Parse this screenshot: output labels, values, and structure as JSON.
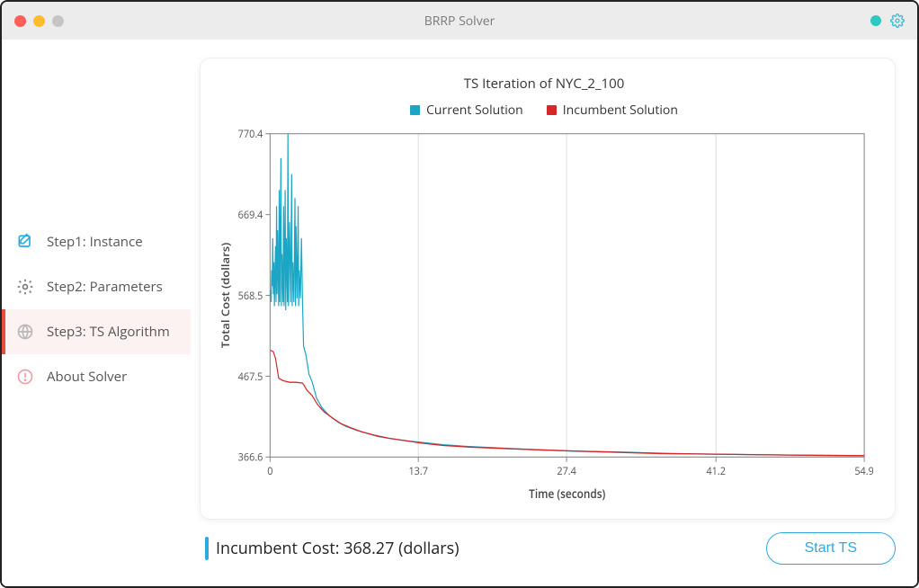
{
  "window": {
    "title": "BRRP Solver"
  },
  "sidebar": {
    "items": [
      {
        "label": "Step1: Instance",
        "icon": "edit",
        "icon_color": "#29abe2",
        "active": false
      },
      {
        "label": "Step2: Parameters",
        "icon": "gear",
        "icon_color": "#7d7d7d",
        "active": false
      },
      {
        "label": "Step3: TS Algorithm",
        "icon": "globe",
        "icon_color": "#b8b8b8",
        "active": true
      },
      {
        "label": "About Solver",
        "icon": "alert",
        "icon_color": "#f29da0",
        "active": false
      }
    ]
  },
  "chart": {
    "title": "TS Iteration of NYC_2_100",
    "legend": [
      {
        "label": "Current Solution",
        "color": "#1aa6c4"
      },
      {
        "label": "Incumbent Solution",
        "color": "#d62728"
      }
    ],
    "xlabel": "Time (seconds)",
    "ylabel": "Total Cost (dollars)",
    "xlim": [
      0.0,
      54.9
    ],
    "ylim": [
      366.6,
      770.4
    ],
    "xticks": [
      0.0,
      13.7,
      27.4,
      41.2,
      54.9
    ],
    "yticks": [
      366.6,
      467.5,
      568.5,
      669.4,
      770.4
    ],
    "grid_color": "#dddddd",
    "axis_color": "#888888",
    "background_color": "#ffffff",
    "line_width": 1.2,
    "series": {
      "current": {
        "color": "#1aa6c4",
        "points": [
          [
            0.05,
            575
          ],
          [
            0.1,
            560
          ],
          [
            0.15,
            600
          ],
          [
            0.2,
            580
          ],
          [
            0.25,
            640
          ],
          [
            0.3,
            570
          ],
          [
            0.35,
            610
          ],
          [
            0.4,
            555
          ],
          [
            0.5,
            630
          ],
          [
            0.55,
            560
          ],
          [
            0.6,
            680
          ],
          [
            0.65,
            570
          ],
          [
            0.7,
            650
          ],
          [
            0.8,
            555
          ],
          [
            0.85,
            700
          ],
          [
            0.9,
            560
          ],
          [
            1.0,
            740
          ],
          [
            1.05,
            555
          ],
          [
            1.1,
            620
          ],
          [
            1.2,
            560
          ],
          [
            1.25,
            680
          ],
          [
            1.3,
            555
          ],
          [
            1.4,
            700
          ],
          [
            1.45,
            550
          ],
          [
            1.5,
            640
          ],
          [
            1.6,
            560
          ],
          [
            1.65,
            770
          ],
          [
            1.7,
            555
          ],
          [
            1.8,
            660
          ],
          [
            1.9,
            560
          ],
          [
            2.0,
            720
          ],
          [
            2.05,
            555
          ],
          [
            2.1,
            610
          ],
          [
            2.2,
            560
          ],
          [
            2.3,
            690
          ],
          [
            2.35,
            555
          ],
          [
            2.4,
            655
          ],
          [
            2.5,
            565
          ],
          [
            2.6,
            680
          ],
          [
            2.65,
            555
          ],
          [
            2.7,
            600
          ],
          [
            2.8,
            565
          ],
          [
            2.9,
            640
          ],
          [
            3.0,
            558
          ],
          [
            3.1,
            505
          ],
          [
            3.3,
            495
          ],
          [
            3.6,
            470
          ],
          [
            3.9,
            460
          ],
          [
            4.3,
            440
          ],
          [
            4.8,
            428
          ],
          [
            5.5,
            418
          ],
          [
            6.3,
            410
          ],
          [
            7.0,
            405
          ],
          [
            8.0,
            400
          ],
          [
            9.0,
            396
          ],
          [
            10.0,
            392
          ],
          [
            11.0,
            390
          ],
          [
            12.5,
            387
          ],
          [
            14.0,
            385
          ],
          [
            16.0,
            382
          ],
          [
            18.0,
            380
          ],
          [
            21.0,
            378
          ],
          [
            24.0,
            376
          ],
          [
            28.0,
            374
          ],
          [
            32.0,
            373
          ],
          [
            37.0,
            371
          ],
          [
            42.0,
            370
          ],
          [
            48.0,
            369
          ],
          [
            54.9,
            368.3
          ]
        ]
      },
      "incumbent": {
        "color": "#d62728",
        "points": [
          [
            0.05,
            500
          ],
          [
            0.3,
            498
          ],
          [
            0.5,
            490
          ],
          [
            0.8,
            465
          ],
          [
            1.2,
            462
          ],
          [
            1.8,
            460
          ],
          [
            2.4,
            460
          ],
          [
            3.0,
            459
          ],
          [
            3.15,
            456
          ],
          [
            3.4,
            450
          ],
          [
            3.9,
            443
          ],
          [
            4.4,
            432
          ],
          [
            5.0,
            423
          ],
          [
            5.8,
            415
          ],
          [
            6.6,
            408
          ],
          [
            7.5,
            403
          ],
          [
            8.5,
            398
          ],
          [
            9.6,
            394
          ],
          [
            11.0,
            390
          ],
          [
            12.5,
            387
          ],
          [
            14.0,
            384
          ],
          [
            16.0,
            381
          ],
          [
            18.5,
            379
          ],
          [
            22.0,
            377
          ],
          [
            26.0,
            375
          ],
          [
            31.0,
            373
          ],
          [
            36.0,
            371
          ],
          [
            42.0,
            370
          ],
          [
            48.0,
            369
          ],
          [
            54.9,
            368.27
          ]
        ]
      }
    }
  },
  "footer": {
    "incumbent_label": "Incumbent Cost: 368.27 (dollars)",
    "button_label": "Start TS"
  },
  "colors": {
    "accent_blue": "#29abe2",
    "active_bg": "#fdf2f2",
    "active_bar": "#e74c3c"
  }
}
